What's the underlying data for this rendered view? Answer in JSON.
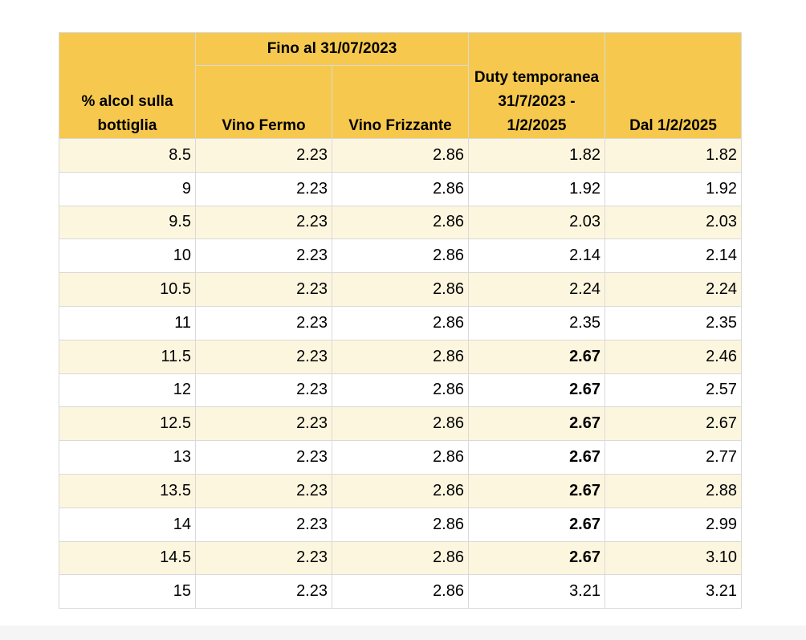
{
  "table": {
    "headers": {
      "alcohol": "% alcol sulla bottiglia",
      "group_until": "Fino al 31/07/2023",
      "still_wine": "Vino Fermo",
      "sparkling_wine": "Vino Frizzante",
      "temporary_duty": "Duty temporanea 31/7/2023 - 1/2/2025",
      "from_2025": "Dal 1/2/2025"
    },
    "rows": [
      {
        "alcohol": "8.5",
        "still": "2.23",
        "sparkling": "2.86",
        "temporary": "1.82",
        "temporary_bold": false,
        "from_2025": "1.82"
      },
      {
        "alcohol": "9",
        "still": "2.23",
        "sparkling": "2.86",
        "temporary": "1.92",
        "temporary_bold": false,
        "from_2025": "1.92"
      },
      {
        "alcohol": "9.5",
        "still": "2.23",
        "sparkling": "2.86",
        "temporary": "2.03",
        "temporary_bold": false,
        "from_2025": "2.03"
      },
      {
        "alcohol": "10",
        "still": "2.23",
        "sparkling": "2.86",
        "temporary": "2.14",
        "temporary_bold": false,
        "from_2025": "2.14"
      },
      {
        "alcohol": "10.5",
        "still": "2.23",
        "sparkling": "2.86",
        "temporary": "2.24",
        "temporary_bold": false,
        "from_2025": "2.24"
      },
      {
        "alcohol": "11",
        "still": "2.23",
        "sparkling": "2.86",
        "temporary": "2.35",
        "temporary_bold": false,
        "from_2025": "2.35"
      },
      {
        "alcohol": "11.5",
        "still": "2.23",
        "sparkling": "2.86",
        "temporary": "2.67",
        "temporary_bold": true,
        "from_2025": "2.46"
      },
      {
        "alcohol": "12",
        "still": "2.23",
        "sparkling": "2.86",
        "temporary": "2.67",
        "temporary_bold": true,
        "from_2025": "2.57"
      },
      {
        "alcohol": "12.5",
        "still": "2.23",
        "sparkling": "2.86",
        "temporary": "2.67",
        "temporary_bold": true,
        "from_2025": "2.67"
      },
      {
        "alcohol": "13",
        "still": "2.23",
        "sparkling": "2.86",
        "temporary": "2.67",
        "temporary_bold": true,
        "from_2025": "2.77"
      },
      {
        "alcohol": "13.5",
        "still": "2.23",
        "sparkling": "2.86",
        "temporary": "2.67",
        "temporary_bold": true,
        "from_2025": "2.88"
      },
      {
        "alcohol": "14",
        "still": "2.23",
        "sparkling": "2.86",
        "temporary": "2.67",
        "temporary_bold": true,
        "from_2025": "2.99"
      },
      {
        "alcohol": "14.5",
        "still": "2.23",
        "sparkling": "2.86",
        "temporary": "2.67",
        "temporary_bold": true,
        "from_2025": "3.10"
      },
      {
        "alcohol": "15",
        "still": "2.23",
        "sparkling": "2.86",
        "temporary": "3.21",
        "temporary_bold": false,
        "from_2025": "3.21"
      }
    ],
    "colors": {
      "header_bg": "#f6c94e",
      "stripe_bg": "#fdf6de",
      "border": "#d9d9d9"
    }
  }
}
